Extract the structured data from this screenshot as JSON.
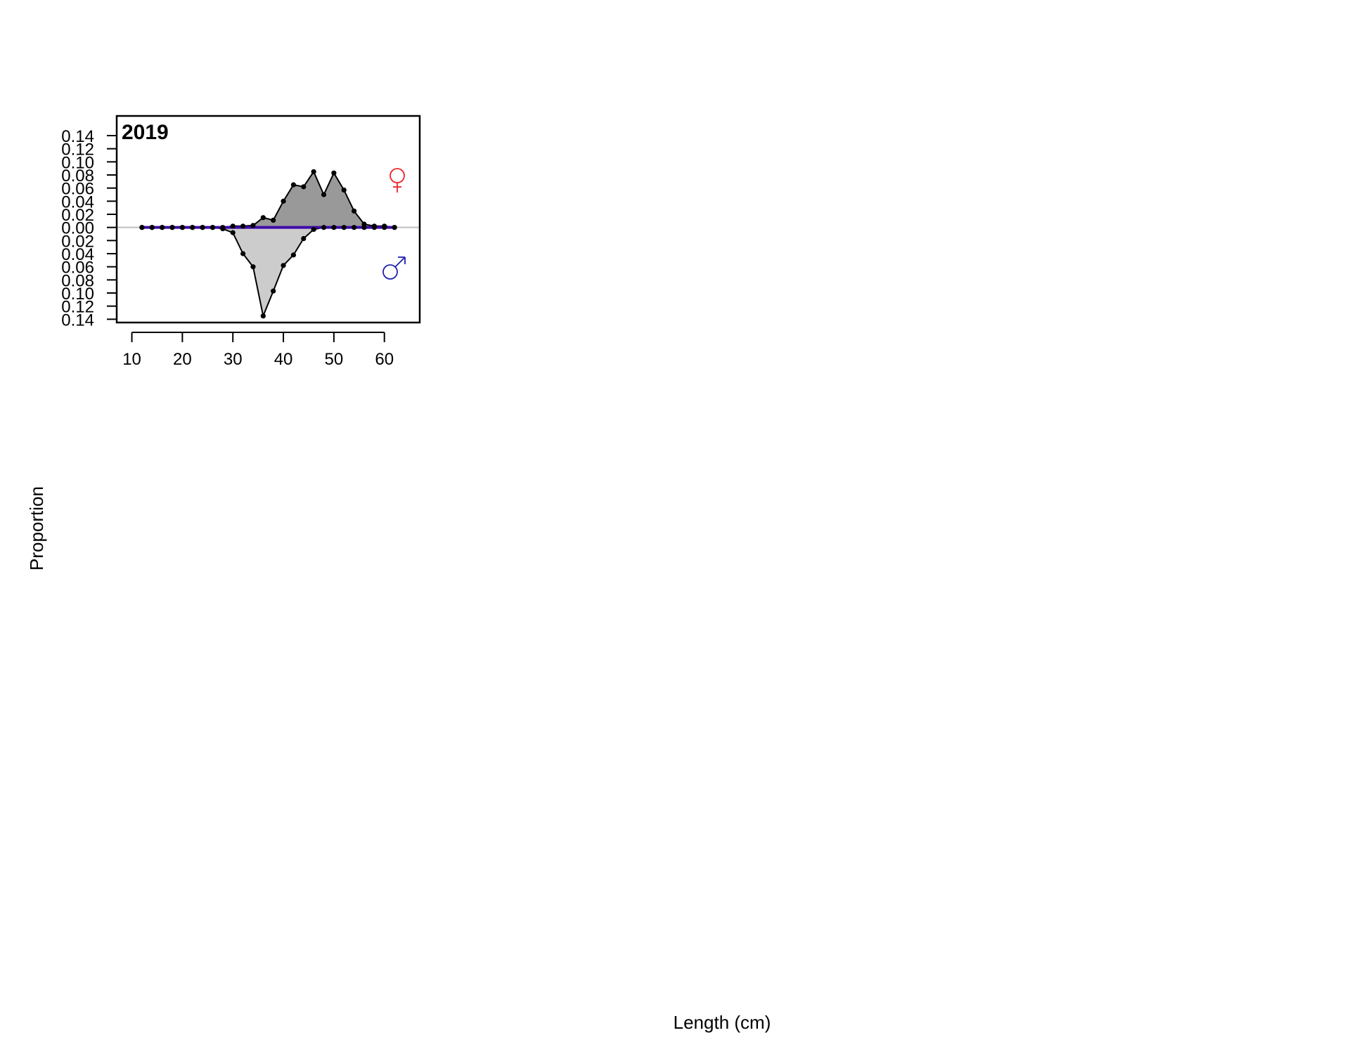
{
  "chart_data": {
    "type": "area",
    "panel_label": "2019",
    "xlabel": "Length (cm)",
    "ylabel": "Proportion",
    "xlim": [
      7,
      67
    ],
    "ylim": [
      -0.145,
      0.17
    ],
    "x_ticks": [
      10,
      20,
      30,
      40,
      50,
      60
    ],
    "y_ticks": [
      -0.14,
      -0.12,
      -0.1,
      -0.08,
      -0.06,
      -0.04,
      -0.02,
      0.0,
      0.02,
      0.04,
      0.06,
      0.08,
      0.1,
      0.12,
      0.14
    ],
    "y_tick_labels": [
      "0.14",
      "0.12",
      "0.10",
      "0.08",
      "0.06",
      "0.04",
      "0.02",
      "0.00",
      "0.02",
      "0.04",
      "0.06",
      "0.08",
      "0.10",
      "0.12",
      "0.14"
    ],
    "x": [
      12,
      14,
      16,
      18,
      20,
      22,
      24,
      26,
      28,
      30,
      32,
      34,
      36,
      38,
      40,
      42,
      44,
      46,
      48,
      50,
      52,
      54,
      56,
      58,
      60,
      62
    ],
    "series": [
      {
        "sex": "female",
        "symbol": "♀",
        "color": "#e8262b",
        "fill": "#999999",
        "values": [
          0,
          0,
          0,
          0,
          0,
          0,
          0,
          0,
          0,
          0.002,
          0.002,
          0.003,
          0.015,
          0.011,
          0.04,
          0.065,
          0.062,
          0.085,
          0.05,
          0.083,
          0.057,
          0.025,
          0.005,
          0.002,
          0.002,
          0
        ]
      },
      {
        "sex": "male",
        "symbol": "♂",
        "color": "#2020b0",
        "fill": "#cccccc",
        "values": [
          0,
          0,
          0,
          0,
          0,
          0,
          0,
          0,
          0.002,
          0.008,
          0.04,
          0.06,
          0.135,
          0.097,
          0.058,
          0.042,
          0.017,
          0.003,
          0,
          0,
          0,
          0,
          0,
          0,
          0,
          0
        ]
      }
    ],
    "colors": {
      "zero_line": "#bebebe",
      "fit_line": "#3f0aa8",
      "outline": "#000000"
    }
  }
}
